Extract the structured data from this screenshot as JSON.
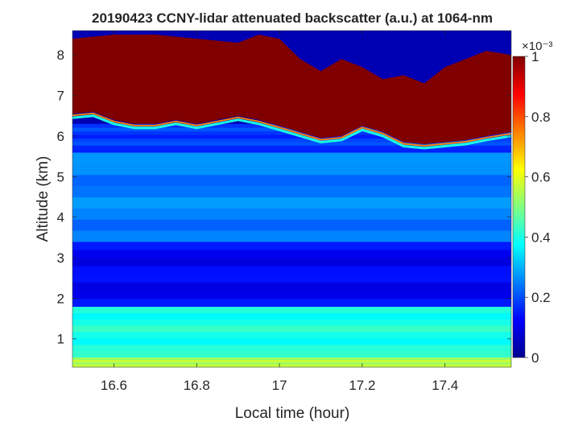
{
  "chart_data": {
    "type": "heatmap",
    "title": "20190423 CCNY-lidar attenuated backscatter (a.u.) at 1064-nm",
    "xlabel": "Local time (hour)",
    "ylabel": "Altitude (km)",
    "xlim": [
      16.5,
      17.56
    ],
    "ylim": [
      0.3,
      8.6
    ],
    "xticks": [
      16.6,
      16.8,
      17,
      17.2,
      17.4
    ],
    "xtick_labels": [
      "16.6",
      "16.8",
      "17",
      "17.2",
      "17.4"
    ],
    "yticks": [
      1,
      2,
      3,
      4,
      5,
      6,
      7,
      8
    ],
    "ytick_labels": [
      "1",
      "2",
      "3",
      "4",
      "5",
      "6",
      "7",
      "8"
    ],
    "colorbar": {
      "colormap": "jet",
      "clim": [
        0,
        1
      ],
      "ticks": [
        0,
        0.2,
        0.4,
        0.6,
        0.8,
        1
      ],
      "tick_labels": [
        "0",
        "0.2",
        "0.4",
        "0.6",
        "0.8",
        "1"
      ],
      "exponent_label": "×10⁻³"
    },
    "cloud_top_km": [
      {
        "t": 16.5,
        "z": 8.4
      },
      {
        "t": 16.55,
        "z": 8.45
      },
      {
        "t": 16.6,
        "z": 8.5
      },
      {
        "t": 16.7,
        "z": 8.5
      },
      {
        "t": 16.8,
        "z": 8.4
      },
      {
        "t": 16.9,
        "z": 8.3
      },
      {
        "t": 16.95,
        "z": 8.5
      },
      {
        "t": 17.0,
        "z": 8.4
      },
      {
        "t": 17.05,
        "z": 7.9
      },
      {
        "t": 17.1,
        "z": 7.6
      },
      {
        "t": 17.15,
        "z": 7.9
      },
      {
        "t": 17.2,
        "z": 7.7
      },
      {
        "t": 17.25,
        "z": 7.4
      },
      {
        "t": 17.3,
        "z": 7.5
      },
      {
        "t": 17.35,
        "z": 7.3
      },
      {
        "t": 17.4,
        "z": 7.7
      },
      {
        "t": 17.45,
        "z": 7.9
      },
      {
        "t": 17.5,
        "z": 8.1
      },
      {
        "t": 17.56,
        "z": 8.0
      }
    ],
    "cloud_base_km": [
      {
        "t": 16.5,
        "z": 6.55
      },
      {
        "t": 16.55,
        "z": 6.6
      },
      {
        "t": 16.6,
        "z": 6.4
      },
      {
        "t": 16.65,
        "z": 6.3
      },
      {
        "t": 16.7,
        "z": 6.3
      },
      {
        "t": 16.75,
        "z": 6.4
      },
      {
        "t": 16.8,
        "z": 6.3
      },
      {
        "t": 16.85,
        "z": 6.4
      },
      {
        "t": 16.9,
        "z": 6.5
      },
      {
        "t": 16.95,
        "z": 6.4
      },
      {
        "t": 17.0,
        "z": 6.25
      },
      {
        "t": 17.05,
        "z": 6.1
      },
      {
        "t": 17.1,
        "z": 5.95
      },
      {
        "t": 17.15,
        "z": 6.0
      },
      {
        "t": 17.2,
        "z": 6.25
      },
      {
        "t": 17.25,
        "z": 6.1
      },
      {
        "t": 17.3,
        "z": 5.85
      },
      {
        "t": 17.35,
        "z": 5.8
      },
      {
        "t": 17.4,
        "z": 5.85
      },
      {
        "t": 17.45,
        "z": 5.9
      },
      {
        "t": 17.5,
        "z": 6.0
      },
      {
        "t": 17.56,
        "z": 6.1
      }
    ],
    "layers": [
      {
        "name": "",
        "z_min": 0.3,
        "z_max": 0.55,
        "value": 0.55
      },
      {
        "name": "",
        "z_min": 0.55,
        "z_max": 1.8,
        "value": 0.4
      },
      {
        "name": "",
        "z_min": 1.8,
        "z_max": 3.4,
        "value": 0.12
      },
      {
        "name": "",
        "z_min": 3.4,
        "z_max": 5.6,
        "value": 0.25
      },
      {
        "name": "",
        "z_min": 5.6,
        "z_max": 6.3,
        "value": 0.18
      }
    ]
  }
}
